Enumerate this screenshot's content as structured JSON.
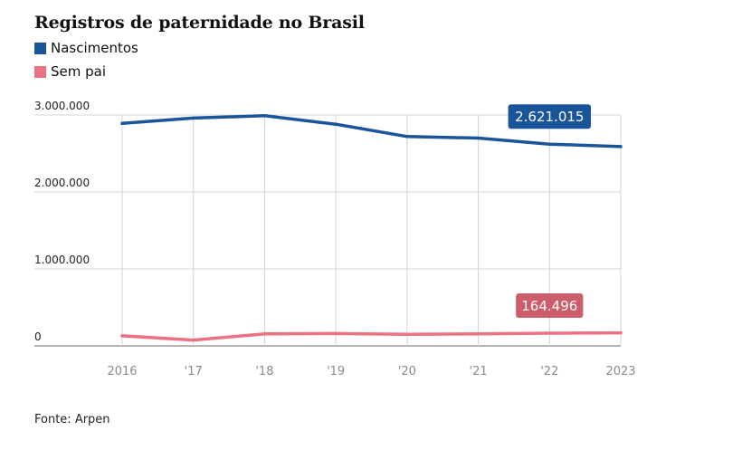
{
  "chart_data": {
    "type": "line",
    "title": "Registros de paternidade no Brasil",
    "categories": [
      "2016",
      "'17",
      "'18",
      "'19",
      "'20",
      "'21",
      "'22",
      "2023"
    ],
    "ylim": [
      0,
      3000000
    ],
    "yticks": [
      0,
      1000000,
      2000000,
      3000000
    ],
    "ytick_labels": [
      "0",
      "1.000.000",
      "2.000.000",
      "3.000.000"
    ],
    "grid": true,
    "legend_position": "top-left",
    "series": [
      {
        "name": "Nascimentos",
        "color": "#1a559c",
        "values": [
          2890000,
          2960000,
          2990000,
          2880000,
          2720000,
          2700000,
          2621015,
          2590000
        ],
        "annotation": {
          "index": 6,
          "label": "2.621.015"
        }
      },
      {
        "name": "Sem pai",
        "color": "#ec7182",
        "values": [
          130000,
          75000,
          155000,
          160000,
          150000,
          155000,
          164496,
          170000
        ],
        "annotation": {
          "index": 6,
          "label": "164.496"
        }
      }
    ],
    "annotation_colors": [
      "#1a559c",
      "#cd5d6b"
    ]
  },
  "source": "Fonte: Arpen"
}
